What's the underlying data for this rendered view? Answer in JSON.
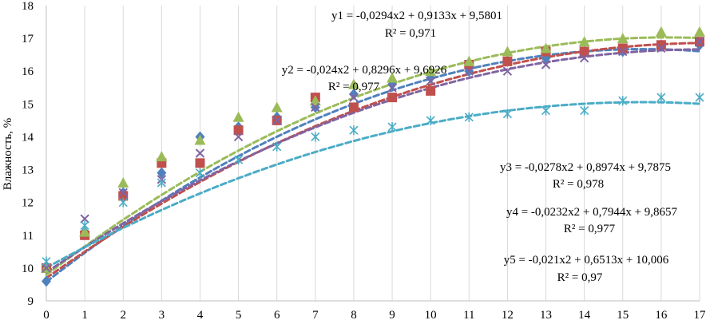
{
  "chart_data": {
    "type": "scatter",
    "title": "",
    "xlabel": "",
    "ylabel": "Влажность, %",
    "xlim": [
      0,
      17
    ],
    "ylim": [
      9,
      18
    ],
    "grid": "vertical",
    "x": [
      0,
      1,
      2,
      3,
      4,
      5,
      6,
      7,
      8,
      9,
      10,
      11,
      12,
      13,
      14,
      15,
      16,
      17
    ],
    "y_ticks": [
      "9",
      "10",
      "11",
      "12",
      "13",
      "14",
      "15",
      "16",
      "17",
      "18"
    ],
    "x_ticks": [
      "0",
      "1",
      "2",
      "3",
      "4",
      "5",
      "6",
      "7",
      "8",
      "9",
      "10",
      "11",
      "12",
      "13",
      "14",
      "15",
      "16",
      "17"
    ],
    "series": [
      {
        "name": "1",
        "marker": "diamond",
        "color": "#4f81bd",
        "trend_color": "#4f81bd",
        "values": [
          9.6,
          11.1,
          12.3,
          12.9,
          14.0,
          14.3,
          14.6,
          14.9,
          15.3,
          15.6,
          15.8,
          16.0,
          16.3,
          16.4,
          16.6,
          16.6,
          16.8,
          16.8
        ],
        "trend": {
          "a": -0.0294,
          "b": 0.9133,
          "c": 9.5801
        },
        "equation": "y1 = -0,0294x2 + 0,9133x + 9,5801",
        "r2": "R² = 0,971"
      },
      {
        "name": "2",
        "marker": "square",
        "color": "#c0504d",
        "trend_color": "#c0504d",
        "values": [
          10.0,
          11.0,
          12.2,
          13.2,
          13.2,
          14.2,
          14.5,
          15.2,
          14.9,
          15.2,
          15.4,
          16.2,
          16.3,
          16.6,
          16.6,
          16.7,
          16.8,
          16.9
        ],
        "trend": {
          "a": -0.024,
          "b": 0.8296,
          "c": 9.6926
        },
        "equation": "y2 = -0,024x2 + 0,8296x + 9,6926",
        "r2": "R² = 0,977"
      },
      {
        "name": "3",
        "marker": "triangle",
        "color": "#9bbb59",
        "trend_color": "#9bbb59",
        "values": [
          10.0,
          11.1,
          12.6,
          13.4,
          13.9,
          14.6,
          14.9,
          15.1,
          15.6,
          15.8,
          16.0,
          16.3,
          16.6,
          16.7,
          16.9,
          17.0,
          17.2,
          17.2
        ],
        "trend": {
          "a": -0.0278,
          "b": 0.8974,
          "c": 9.7875
        },
        "equation": "y3 = -0,0278x2 + 0,8974x + 9,7875",
        "r2": "R² = 0,978"
      },
      {
        "name": "4",
        "marker": "x",
        "color": "#8064a2",
        "trend_color": "#8064a2",
        "values": [
          10.0,
          11.5,
          12.3,
          12.7,
          13.5,
          14.0,
          14.5,
          14.9,
          15.2,
          15.5,
          15.7,
          16.0,
          16.0,
          16.2,
          16.4,
          16.6,
          16.7,
          16.9
        ],
        "trend": {
          "a": -0.0232,
          "b": 0.7944,
          "c": 9.8657
        },
        "equation": "y4 = -0,0232x2 + 0,7944x + 9,8657",
        "r2": "R² = 0,977"
      },
      {
        "name": "5",
        "marker": "asterisk",
        "color": "#4bacc6",
        "trend_color": "#4bacc6",
        "values": [
          10.2,
          11.3,
          12.0,
          12.6,
          12.9,
          13.3,
          13.7,
          14.0,
          14.2,
          14.3,
          14.5,
          14.6,
          14.7,
          14.8,
          14.8,
          15.1,
          15.2,
          15.2
        ],
        "trend": {
          "a": -0.021,
          "b": 0.6513,
          "c": 10.006
        },
        "equation": "y5 = -0,021x2 + 0,6513x + 10,006",
        "r2": "R² = 0,97"
      }
    ]
  }
}
